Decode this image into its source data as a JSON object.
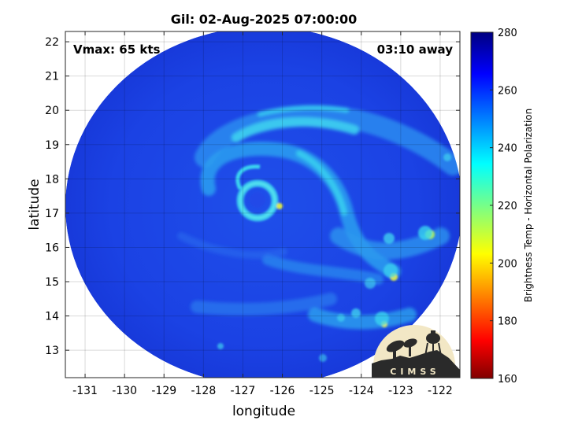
{
  "title": "Gil: 02-Aug-2025 07:00:00",
  "vmax_label": "Vmax: 65 kts",
  "time_away_label": "03:10 away",
  "axes": {
    "xlabel": "longitude",
    "ylabel": "latitude",
    "x_ticks": [
      -131,
      -130,
      -129,
      -128,
      -127,
      -126,
      -125,
      -124,
      -123,
      -122
    ],
    "y_ticks": [
      13,
      14,
      15,
      16,
      17,
      18,
      19,
      20,
      21,
      22
    ],
    "x_tick_labels": [
      "-131",
      "-130",
      "-129",
      "-128",
      "-127",
      "-126",
      "-125",
      "-124",
      "-123",
      "-122"
    ],
    "y_tick_labels": [
      "13",
      "14",
      "15",
      "16",
      "17",
      "18",
      "19",
      "20",
      "21",
      "22"
    ],
    "xlim": [
      -131.5,
      -121.5
    ],
    "ylim": [
      12.2,
      22.3
    ],
    "grid": true
  },
  "colorbar": {
    "label": "Brightness Temp - Horizontal Polarization",
    "ticks": [
      160,
      180,
      200,
      220,
      240,
      260,
      280
    ],
    "tick_labels": [
      "160",
      "180",
      "200",
      "220",
      "240",
      "260",
      "280"
    ],
    "range": [
      160,
      280
    ],
    "colormap": "jet"
  },
  "storm": {
    "name": "Gil",
    "center_lon": -126.5,
    "center_lat": 17.2
  },
  "logo_text": "CIMSS",
  "colors": {
    "background_cold": "#1a40e6",
    "band_light": "#2fa8ef",
    "band_cyan": "#3ad6f0",
    "band_yellow": "#e6e64a"
  }
}
